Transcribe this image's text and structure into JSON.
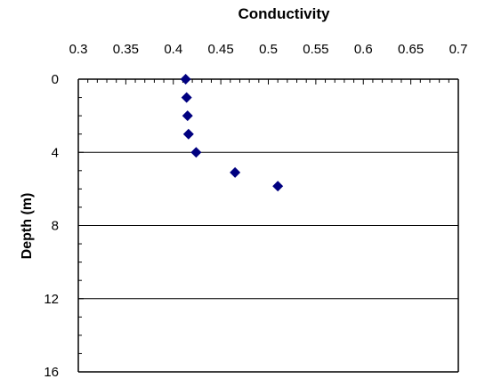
{
  "chart_data": {
    "type": "scatter",
    "title": "Conductivity",
    "xlabel": "",
    "ylabel": "Depth (m)",
    "xlim": [
      0.3,
      0.7
    ],
    "ylim": [
      0,
      16
    ],
    "y_inverted": true,
    "x_axis_position": "top",
    "x_ticks": [
      0.3,
      0.35,
      0.4,
      0.45,
      0.5,
      0.55,
      0.6,
      0.65,
      0.7
    ],
    "x_tick_labels": [
      "0.3",
      "0.35",
      "0.4",
      "0.45",
      "0.5",
      "0.55",
      "0.6",
      "0.65",
      "0.7"
    ],
    "y_ticks": [
      0,
      4,
      8,
      12,
      16
    ],
    "y_tick_labels": [
      "0",
      "4",
      "8",
      "12",
      "16"
    ],
    "x_minor_step": 0.01,
    "y_minor_step": 1,
    "grid": "horizontal major gridlines",
    "legend": "none",
    "marker": "diamond",
    "colors": {
      "marker": "#000080",
      "axes": "#000000",
      "grid": "#000000"
    },
    "series": [
      {
        "x": [
          0.413,
          0.414,
          0.415,
          0.416,
          0.424,
          0.465,
          0.51
        ],
        "y": [
          0,
          1,
          2,
          3,
          4,
          5.1,
          5.85
        ]
      }
    ]
  }
}
